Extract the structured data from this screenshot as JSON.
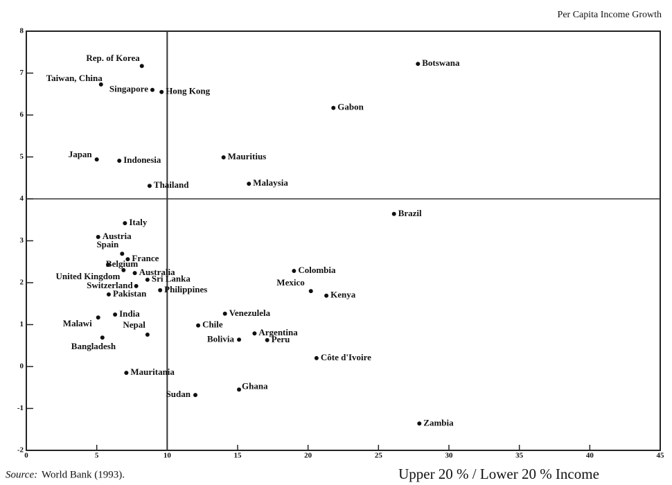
{
  "chart_data": {
    "type": "scatter",
    "y_label": "Per Capita Income Growth",
    "x_label": "Upper 20 % / Lower 20 % Income",
    "source_label": "Source:",
    "source": "World Bank (1993).",
    "labels": [
      "Rep. of Korea",
      "Taiwan, China",
      "Singapore",
      "Hong Kong",
      "Botswana",
      "Gabon",
      "Japan",
      "Indonesia",
      "Mauritius",
      "Thailand",
      "Malaysia",
      "Brazil",
      "Italy",
      "Austria",
      "Spain",
      "France",
      "Belgium",
      "Australia",
      "Sri Lanka",
      "United Kingdom",
      "Switzerland",
      "Pakistan",
      "Philippines",
      "Colombia",
      "Mexico",
      "Kenya",
      "Venezulela",
      "India",
      "Malawi",
      "Nepal",
      "Chile",
      "Argentina",
      "Bolivia",
      "Peru",
      "Bangladesh",
      "Côte d'Ivoire",
      "Mauritania",
      "Ghana",
      "Sudan",
      "Zambia"
    ],
    "x": [
      8.2,
      5.3,
      8.95,
      9.6,
      27.8,
      21.8,
      5.0,
      6.6,
      14.0,
      8.75,
      15.8,
      26.1,
      7.0,
      5.1,
      6.8,
      7.2,
      5.8,
      7.7,
      8.6,
      6.9,
      7.8,
      5.85,
      9.5,
      19.0,
      20.2,
      21.3,
      14.1,
      6.3,
      5.1,
      8.6,
      12.2,
      16.2,
      15.1,
      17.1,
      5.4,
      20.6,
      7.1,
      15.1,
      12.0,
      27.9
    ],
    "y": [
      7.17,
      6.73,
      6.6,
      6.55,
      7.22,
      6.17,
      4.94,
      4.91,
      4.99,
      4.31,
      4.36,
      3.64,
      3.42,
      3.09,
      2.69,
      2.56,
      2.43,
      2.23,
      2.07,
      2.3,
      1.92,
      1.72,
      1.82,
      2.28,
      1.8,
      1.69,
      1.26,
      1.24,
      1.17,
      0.76,
      0.98,
      0.79,
      0.64,
      0.63,
      0.69,
      0.2,
      -0.15,
      -0.55,
      -0.68,
      -1.36
    ],
    "color": "#111111",
    "xlim": [
      0,
      45
    ],
    "ylim": [
      -2,
      8
    ],
    "xticks": [
      0,
      5,
      10,
      15,
      20,
      25,
      30,
      35,
      40,
      45
    ],
    "yticks": [
      -2,
      -1,
      0,
      1,
      2,
      3,
      4,
      5,
      6,
      7,
      8
    ],
    "vlines": [
      10
    ],
    "hlines": [
      4
    ],
    "grid": false
  }
}
